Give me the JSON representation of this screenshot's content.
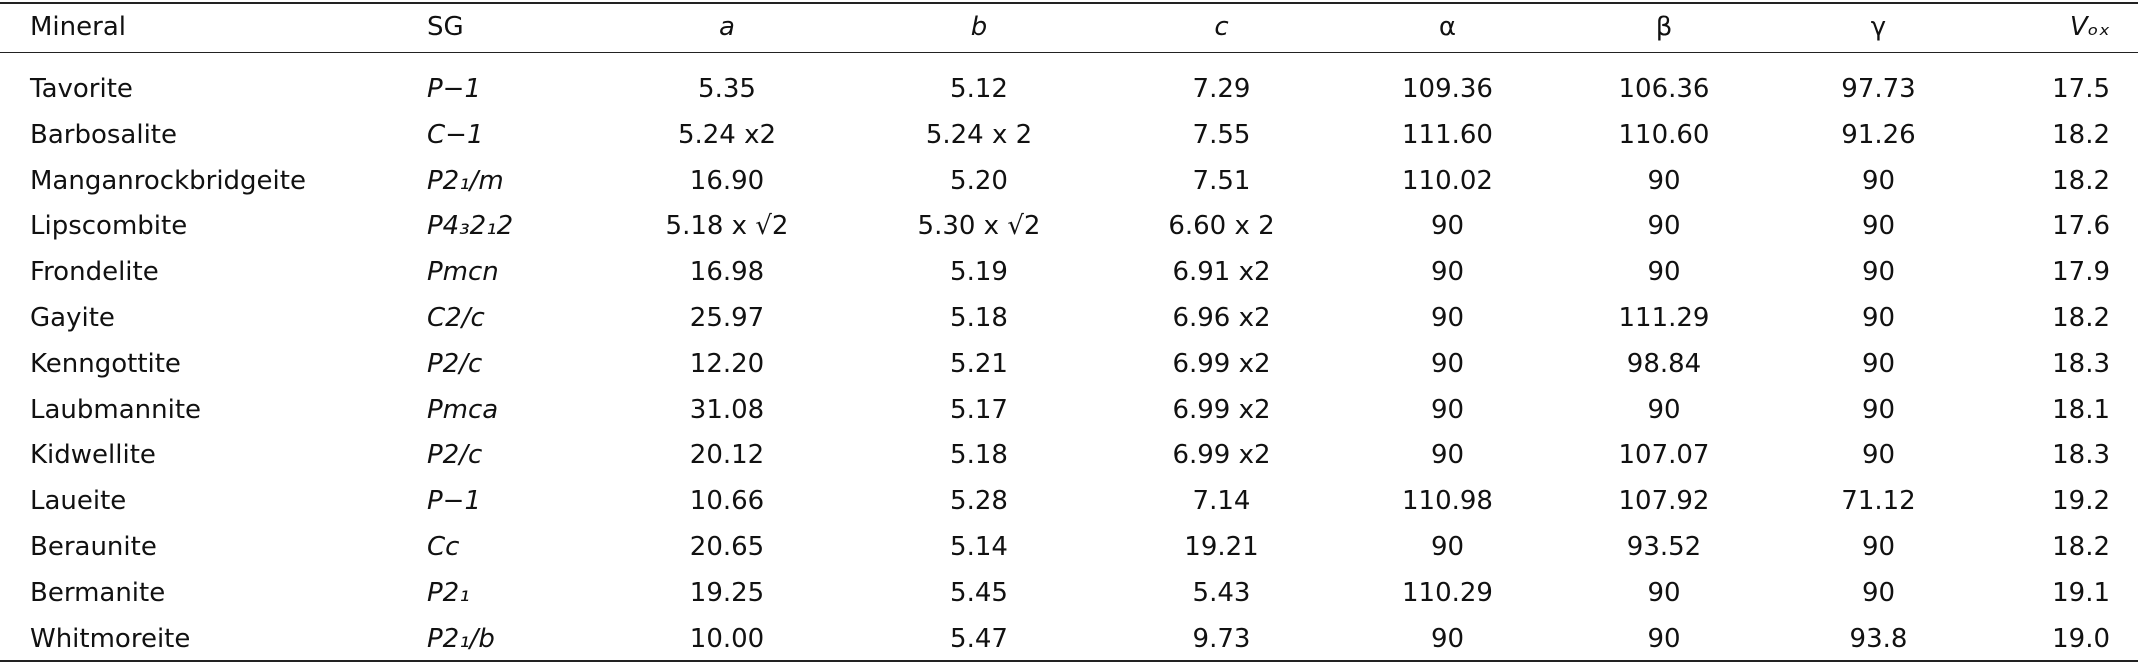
{
  "table": {
    "header": [
      "Mineral",
      "SG",
      "a",
      "b",
      "c",
      "α",
      "β",
      "γ",
      "Vₒₓ"
    ],
    "rows": [
      [
        "Tavorite",
        "P−1",
        "5.35",
        "5.12",
        "7.29",
        "109.36",
        "106.36",
        "97.73",
        "17.5"
      ],
      [
        "Barbosalite",
        "C−1",
        "5.24 x2",
        "5.24 x 2",
        "7.55",
        "111.60",
        "110.60",
        "91.26",
        "18.2"
      ],
      [
        "Manganrockbridgeite",
        "P2₁/m",
        "16.90",
        "5.20",
        "7.51",
        "110.02",
        "90",
        "90",
        "18.2"
      ],
      [
        "Lipscombite",
        "P4₃2₁2",
        "5.18 x √2",
        "5.30 x √2",
        "6.60 x 2",
        "90",
        "90",
        "90",
        "17.6"
      ],
      [
        "Frondelite",
        "Pmcn",
        "16.98",
        "5.19",
        "6.91 x2",
        "90",
        "90",
        "90",
        "17.9"
      ],
      [
        "Gayite",
        "C2/c",
        "25.97",
        "5.18",
        "6.96 x2",
        "90",
        "111.29",
        "90",
        "18.2"
      ],
      [
        "Kenngottite",
        "P2/c",
        "12.20",
        "5.21",
        "6.99 x2",
        "90",
        "98.84",
        "90",
        "18.3"
      ],
      [
        "Laubmannite",
        "Pmca",
        "31.08",
        "5.17",
        "6.99 x2",
        "90",
        "90",
        "90",
        "18.1"
      ],
      [
        "Kidwellite",
        "P2/c",
        "20.12",
        "5.18",
        "6.99 x2",
        "90",
        "107.07",
        "90",
        "18.3"
      ],
      [
        "Laueite",
        "P−1",
        "10.66",
        "5.28",
        "7.14",
        "110.98",
        "107.92",
        "71.12",
        "19.2"
      ],
      [
        "Beraunite",
        "Cc",
        "20.65",
        "5.14",
        "19.21",
        "90",
        "93.52",
        "90",
        "18.2"
      ],
      [
        "Bermanite",
        "P2₁",
        "19.25",
        "5.45",
        "5.43",
        "110.29",
        "90",
        "90",
        "19.1"
      ],
      [
        "Whitmoreite",
        "P2₁/b",
        "10.00",
        "5.47",
        "9.73",
        "90",
        "90",
        "93.8",
        "19.0"
      ]
    ]
  }
}
